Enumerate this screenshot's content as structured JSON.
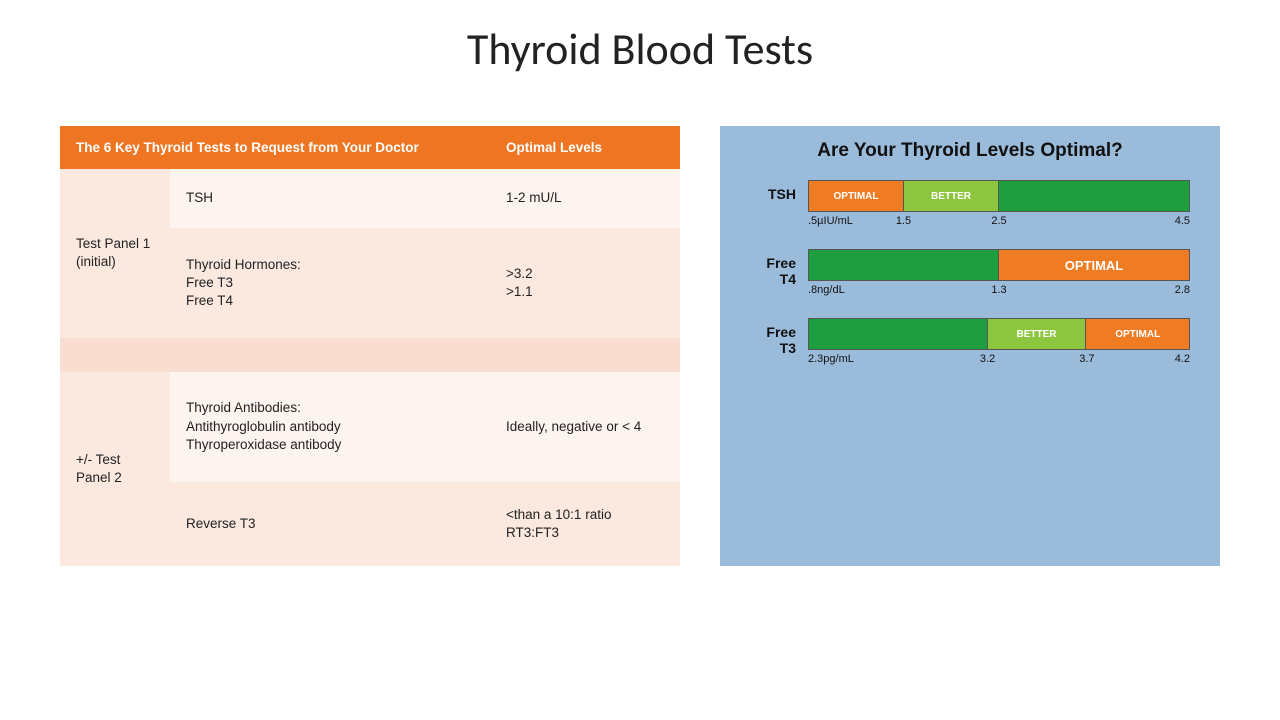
{
  "title": "Thyroid Blood Tests",
  "table": {
    "header_col1": "The 6 Key Thyroid Tests to Request from Your Doctor",
    "header_col2": "Optimal Levels",
    "panel1_label": "Test Panel 1 (initial)",
    "panel1_row1_test": "TSH",
    "panel1_row1_level": "1-2 mU/L",
    "panel1_row2_test": "Thyroid Hormones:\nFree T3\nFree T4",
    "panel1_row2_level": ">3.2\n>1.1",
    "panel2_label": "+/- Test Panel 2",
    "panel2_row1_test": "Thyroid Antibodies:\nAntithyroglobulin antibody\nThyroperoxidase antibody",
    "panel2_row1_level": "Ideally, negative or < 4",
    "panel2_row2_test": "Reverse T3",
    "panel2_row2_level": "<than a 10:1 ratio RT3:FT3",
    "colors": {
      "header_bg": "#ee7623",
      "header_fg": "#ffffff",
      "row_light": "#fbe9e0",
      "row_lighter": "#fdf3ef",
      "spacer": "#f9ddd0"
    }
  },
  "chart": {
    "title": "Are Your Thyroid Levels Optimal?",
    "panel_bg": "#9bbbdb",
    "colors": {
      "optimal": "#ef7b23",
      "better": "#8cc63e",
      "rest": "#1e9e3e"
    },
    "rows": [
      {
        "label": "TSH",
        "segments": [
          {
            "text": "OPTIMAL",
            "color": "optimal",
            "width_pct": 25
          },
          {
            "text": "BETTER",
            "color": "better",
            "width_pct": 25
          },
          {
            "text": "",
            "color": "rest",
            "width_pct": 50
          }
        ],
        "ticks": [
          {
            "text": ".5µIU/mL",
            "pos_pct": 0,
            "align": "left"
          },
          {
            "text": "1.5",
            "pos_pct": 25
          },
          {
            "text": "2.5",
            "pos_pct": 50
          },
          {
            "text": "4.5",
            "pos_pct": 100,
            "align": "right"
          }
        ]
      },
      {
        "label": "Free T4",
        "segments": [
          {
            "text": "",
            "color": "rest",
            "width_pct": 50
          },
          {
            "text": "OPTIMAL",
            "color": "optimal",
            "width_pct": 50
          }
        ],
        "ticks": [
          {
            "text": ".8ng/dL",
            "pos_pct": 0,
            "align": "left"
          },
          {
            "text": "1.3",
            "pos_pct": 50
          },
          {
            "text": "2.8",
            "pos_pct": 100,
            "align": "right"
          }
        ]
      },
      {
        "label": "Free T3",
        "segments": [
          {
            "text": "",
            "color": "rest",
            "width_pct": 47
          },
          {
            "text": "BETTER",
            "color": "better",
            "width_pct": 26
          },
          {
            "text": "OPTIMAL",
            "color": "optimal",
            "width_pct": 27
          }
        ],
        "ticks": [
          {
            "text": "2.3pg/mL",
            "pos_pct": 0,
            "align": "left"
          },
          {
            "text": "3.2",
            "pos_pct": 47
          },
          {
            "text": "3.7",
            "pos_pct": 73
          },
          {
            "text": "4.2",
            "pos_pct": 100,
            "align": "right"
          }
        ]
      }
    ]
  }
}
